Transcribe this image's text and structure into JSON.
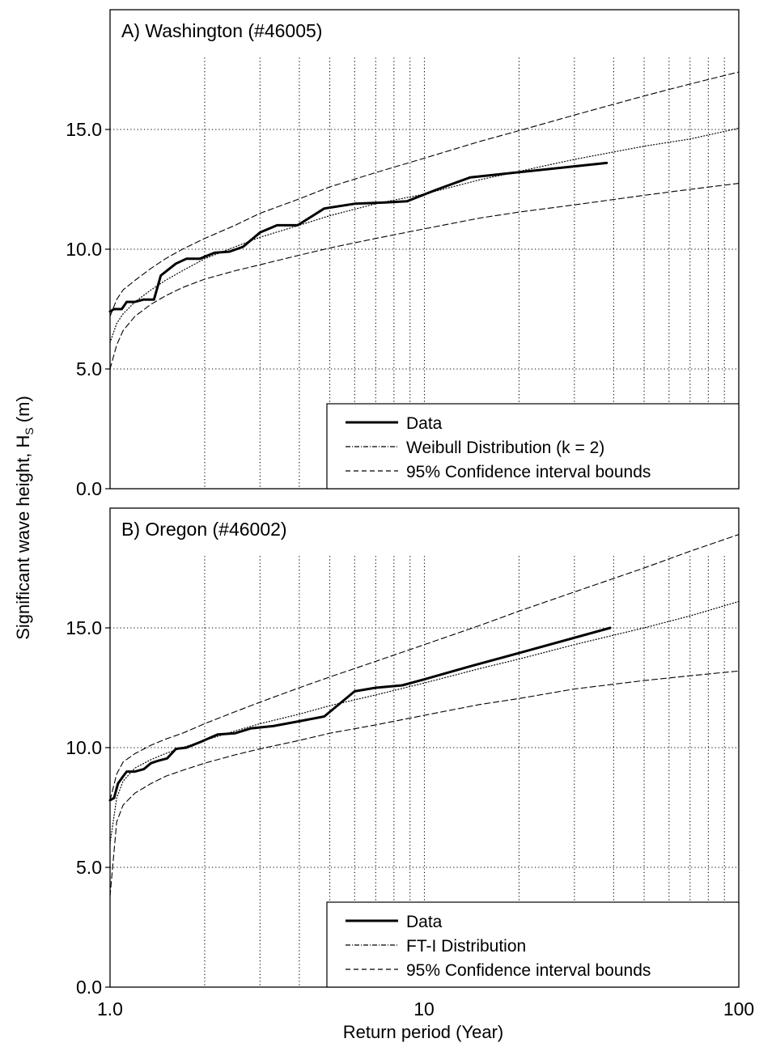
{
  "figure": {
    "ylabel_main": "Significant wave height, H",
    "ylabel_sub": "S",
    "ylabel_unit": " (m)",
    "xlabel": "Return period (Year)",
    "xtick_labels": [
      "1.0",
      "10",
      "100"
    ]
  },
  "chart_data": [
    {
      "type": "line",
      "title": "A) Washington (#46005)",
      "x_scale": "log",
      "xlim": [
        1,
        100
      ],
      "ylim": [
        0,
        20
      ],
      "yticks": [
        0,
        5,
        10,
        15
      ],
      "ytick_labels": [
        "0.0",
        "5.0",
        "10.0",
        "15.0"
      ],
      "grid": true,
      "legend_position": "bottom-right",
      "series": [
        {
          "name": "Data",
          "style": "solid-thick",
          "x": [
            1.0,
            1.03,
            1.07,
            1.09,
            1.13,
            1.2,
            1.28,
            1.38,
            1.45,
            1.55,
            1.62,
            1.75,
            1.93,
            2.15,
            2.4,
            2.65,
            3.0,
            3.4,
            3.95,
            4.8,
            6.0,
            7.5,
            8.8,
            11.0,
            14.0,
            38.0
          ],
          "y": [
            7.4,
            7.5,
            7.5,
            7.5,
            7.8,
            7.8,
            7.9,
            7.9,
            8.9,
            9.2,
            9.4,
            9.6,
            9.6,
            9.85,
            9.9,
            10.1,
            10.7,
            11.0,
            11.0,
            11.7,
            11.9,
            11.95,
            12.0,
            12.5,
            13.0,
            13.6
          ]
        },
        {
          "name": "Weibull Distribution (k = 2)",
          "style": "dotted",
          "x": [
            1.0,
            1.05,
            1.1,
            1.2,
            1.35,
            1.5,
            1.7,
            2.0,
            2.5,
            3.0,
            4.0,
            5.0,
            7.0,
            10.0,
            15.0,
            20.0,
            30.0,
            50.0,
            70.0,
            100.0
          ],
          "y": [
            6.1,
            6.9,
            7.3,
            7.8,
            8.3,
            8.7,
            9.1,
            9.6,
            10.1,
            10.5,
            11.0,
            11.4,
            11.9,
            12.3,
            12.9,
            13.25,
            13.75,
            14.3,
            14.6,
            15.05
          ]
        },
        {
          "name": "95% Confidence interval bounds",
          "style": "dashed",
          "x": [
            1.0,
            1.05,
            1.1,
            1.2,
            1.35,
            1.5,
            1.7,
            2.0,
            2.5,
            3.0,
            4.0,
            5.0,
            7.0,
            10.0,
            15.0,
            20.0,
            30.0,
            50.0,
            70.0,
            100.0
          ],
          "y": [
            7.2,
            7.9,
            8.3,
            8.7,
            9.2,
            9.6,
            10.0,
            10.45,
            11.0,
            11.5,
            12.1,
            12.6,
            13.2,
            13.8,
            14.5,
            14.95,
            15.6,
            16.4,
            16.9,
            17.4
          ]
        },
        {
          "name": "",
          "style": "dashed",
          "x": [
            1.0,
            1.05,
            1.1,
            1.2,
            1.35,
            1.5,
            1.7,
            2.0,
            2.5,
            3.0,
            4.0,
            5.0,
            7.0,
            10.0,
            15.0,
            20.0,
            30.0,
            50.0,
            70.0,
            100.0
          ],
          "y": [
            5.0,
            6.0,
            6.6,
            7.2,
            7.7,
            8.05,
            8.4,
            8.75,
            9.1,
            9.35,
            9.75,
            10.05,
            10.45,
            10.85,
            11.3,
            11.55,
            11.85,
            12.25,
            12.5,
            12.75
          ]
        }
      ]
    },
    {
      "type": "line",
      "title": "B) Oregon (#46002)",
      "x_scale": "log",
      "xlim": [
        1,
        100
      ],
      "ylim": [
        0,
        20
      ],
      "yticks": [
        0,
        5,
        10,
        15
      ],
      "ytick_labels": [
        "0.0",
        "5.0",
        "10.0",
        "15.0"
      ],
      "grid": true,
      "legend_position": "bottom-right",
      "series": [
        {
          "name": "Data",
          "style": "solid-thick",
          "x": [
            1.0,
            1.03,
            1.06,
            1.1,
            1.13,
            1.2,
            1.28,
            1.35,
            1.42,
            1.52,
            1.62,
            1.75,
            1.95,
            2.2,
            2.5,
            2.8,
            3.3,
            4.0,
            4.8,
            6.0,
            7.0,
            8.5,
            10.0,
            14.0,
            20.0,
            39.0
          ],
          "y": [
            7.8,
            7.9,
            8.5,
            8.8,
            9.0,
            9.0,
            9.1,
            9.35,
            9.45,
            9.55,
            9.95,
            10.0,
            10.25,
            10.55,
            10.6,
            10.8,
            10.9,
            11.1,
            11.3,
            12.35,
            12.5,
            12.6,
            12.85,
            13.4,
            13.95,
            15.0
          ]
        },
        {
          "name": "FT-I Distribution",
          "style": "dotted",
          "x": [
            1.0,
            1.05,
            1.1,
            1.2,
            1.35,
            1.5,
            1.7,
            2.0,
            2.5,
            3.0,
            4.0,
            5.0,
            7.0,
            10.0,
            15.0,
            20.0,
            30.0,
            50.0,
            70.0,
            100.0
          ],
          "y": [
            6.0,
            7.9,
            8.6,
            9.15,
            9.5,
            9.75,
            10.0,
            10.3,
            10.7,
            11.0,
            11.4,
            11.75,
            12.2,
            12.7,
            13.3,
            13.7,
            14.3,
            15.0,
            15.5,
            16.1
          ]
        },
        {
          "name": "95% Confidence interval bounds",
          "style": "dashed",
          "x": [
            1.0,
            1.05,
            1.1,
            1.2,
            1.35,
            1.5,
            1.7,
            2.0,
            2.5,
            3.0,
            4.0,
            5.0,
            7.0,
            10.0,
            15.0,
            20.0,
            30.0,
            50.0,
            70.0,
            100.0
          ],
          "y": [
            7.8,
            8.9,
            9.4,
            9.75,
            10.1,
            10.35,
            10.6,
            11.0,
            11.5,
            11.9,
            12.5,
            12.95,
            13.6,
            14.3,
            15.1,
            15.7,
            16.5,
            17.5,
            18.2,
            18.9
          ]
        },
        {
          "name": "",
          "style": "dashed",
          "x": [
            1.0,
            1.05,
            1.1,
            1.2,
            1.35,
            1.5,
            1.7,
            2.0,
            2.5,
            3.0,
            4.0,
            5.0,
            7.0,
            10.0,
            15.0,
            20.0,
            30.0,
            50.0,
            70.0,
            100.0
          ],
          "y": [
            3.8,
            6.9,
            7.6,
            8.1,
            8.5,
            8.8,
            9.05,
            9.35,
            9.7,
            9.95,
            10.3,
            10.6,
            10.95,
            11.35,
            11.8,
            12.05,
            12.45,
            12.8,
            13.0,
            13.2
          ]
        }
      ]
    }
  ]
}
